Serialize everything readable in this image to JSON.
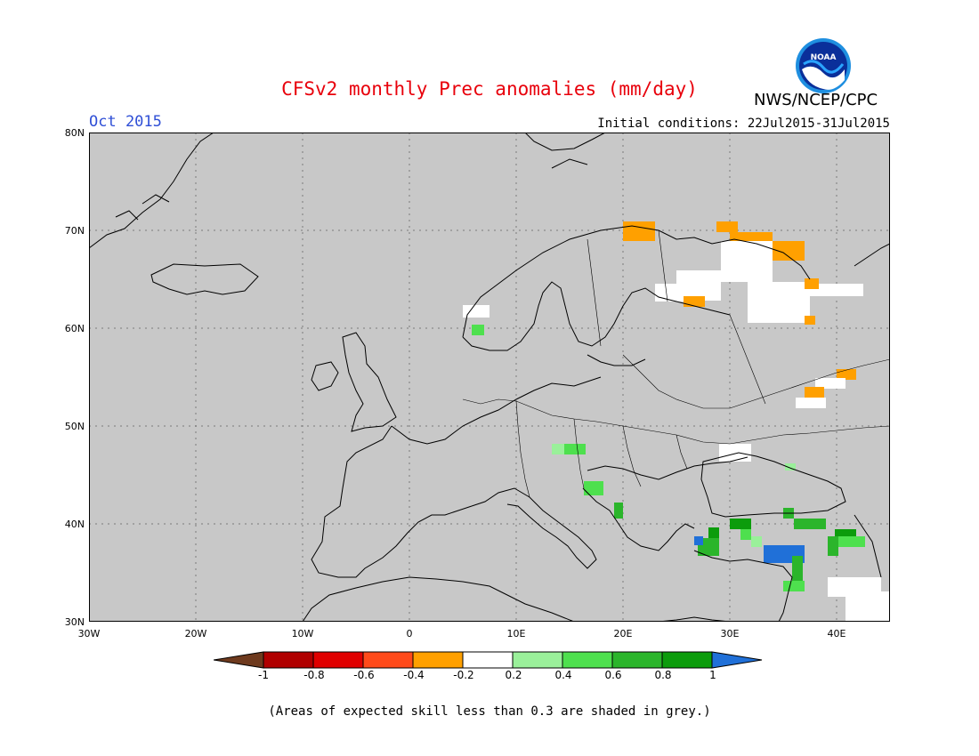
{
  "header": {
    "title": "CFSv2 monthly Prec anomalies (mm/day)",
    "period": "Oct 2015",
    "initial_conditions": "Initial conditions: 22Jul2015-31Jul2015",
    "organization": "NWS/NCEP/CPC",
    "logo_text": "NOAA"
  },
  "map": {
    "lat_range": [
      30,
      80
    ],
    "lon_range": [
      -30,
      45
    ],
    "background_color": "#c8c8c8",
    "lat_labels": [
      "80N",
      "70N",
      "60N",
      "50N",
      "40N",
      "30N"
    ],
    "lon_labels": [
      "30W",
      "20W",
      "10W",
      "0",
      "10E",
      "20E",
      "30E",
      "40E"
    ]
  },
  "colorbar": {
    "labels": [
      "-1",
      "-0.8",
      "-0.6",
      "-0.4",
      "-0.2",
      "0.2",
      "0.4",
      "0.6",
      "0.8",
      "1"
    ],
    "colors": [
      "#6e3a1e",
      "#b00000",
      "#e00000",
      "#ff4a1a",
      "#ffa000",
      "#ffffff",
      "#9af09a",
      "#4ee04e",
      "#2bb52b",
      "#0c9c0c",
      "#2070d8"
    ]
  },
  "note": "(Areas of expected skill less than 0.3 are shaded in grey.)"
}
